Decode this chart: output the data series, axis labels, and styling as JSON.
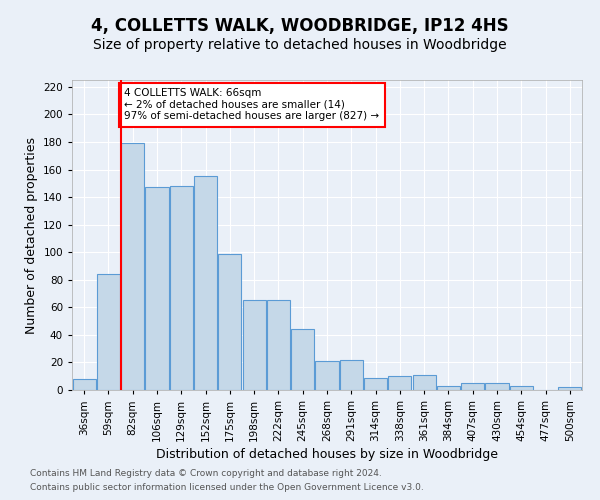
{
  "title": "4, COLLETTS WALK, WOODBRIDGE, IP12 4HS",
  "subtitle": "Size of property relative to detached houses in Woodbridge",
  "xlabel": "Distribution of detached houses by size in Woodbridge",
  "ylabel": "Number of detached properties",
  "footnote1": "Contains HM Land Registry data © Crown copyright and database right 2024.",
  "footnote2": "Contains public sector information licensed under the Open Government Licence v3.0.",
  "bar_labels": [
    "36sqm",
    "59sqm",
    "82sqm",
    "106sqm",
    "129sqm",
    "152sqm",
    "175sqm",
    "198sqm",
    "222sqm",
    "245sqm",
    "268sqm",
    "291sqm",
    "314sqm",
    "338sqm",
    "361sqm",
    "384sqm",
    "407sqm",
    "430sqm",
    "454sqm",
    "477sqm",
    "500sqm"
  ],
  "bar_values": [
    8,
    84,
    179,
    147,
    148,
    155,
    99,
    65,
    65,
    44,
    21,
    22,
    9,
    10,
    11,
    3,
    5,
    5,
    3,
    0,
    2
  ],
  "bar_color": "#c5d8e8",
  "bar_edge_color": "#5b9bd5",
  "vline_x_index": 1,
  "vline_color": "red",
  "annotation_text": "4 COLLETTS WALK: 66sqm\n← 2% of detached houses are smaller (14)\n97% of semi-detached houses are larger (827) →",
  "annotation_box_color": "white",
  "annotation_box_edge": "red",
  "ylim": [
    0,
    225
  ],
  "yticks": [
    0,
    20,
    40,
    60,
    80,
    100,
    120,
    140,
    160,
    180,
    200,
    220
  ],
  "bg_color": "#eaf0f8",
  "plot_bg_color": "#eaf0f8",
  "title_fontsize": 12,
  "subtitle_fontsize": 10,
  "xlabel_fontsize": 9,
  "ylabel_fontsize": 9,
  "footnote_fontsize": 6.5,
  "tick_fontsize": 7.5
}
